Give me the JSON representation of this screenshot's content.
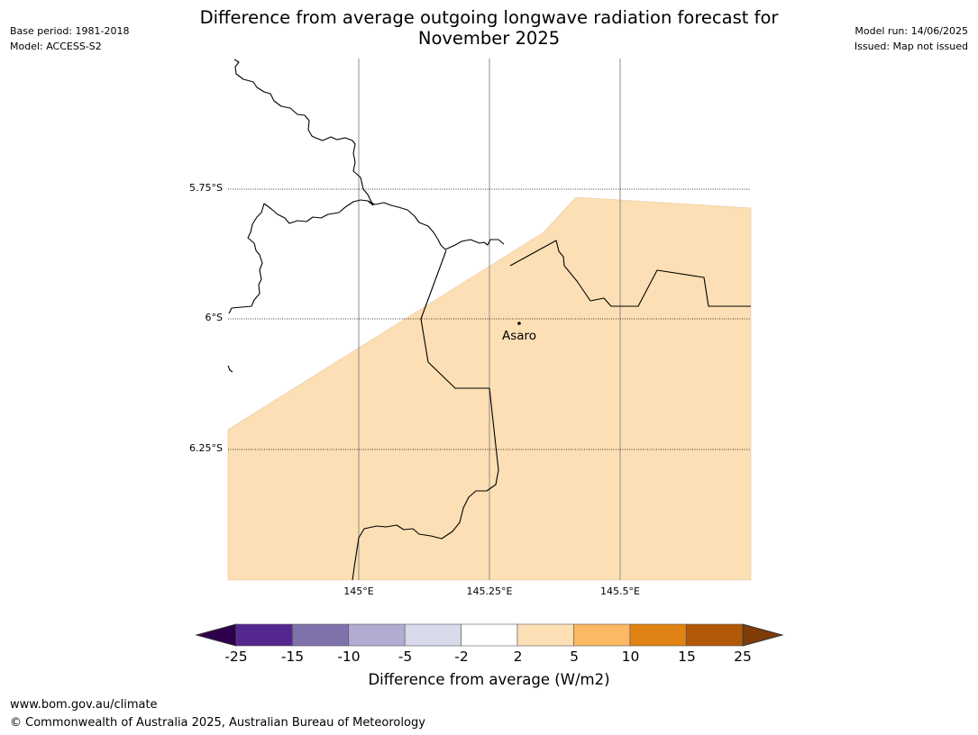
{
  "header": {
    "title_line1": "Difference from average outgoing longwave radiation forecast for",
    "title_line2": "November 2025",
    "base_period": "Base period: 1981-2018",
    "model": "Model: ACCESS-S2",
    "model_run": "Model run: 14/06/2025",
    "issued": "Issued: Map not issued"
  },
  "map": {
    "lat_labels": [
      "5.75°S",
      "6°S",
      "6.25°S"
    ],
    "lon_labels": [
      "145°E",
      "145.25°E",
      "145.5°E"
    ],
    "place_label": "Asaro",
    "fill_color": "#fcdfb4",
    "fill_category": "2 to 5"
  },
  "colorbar": {
    "title": "Difference from average (W/m2)",
    "ticks": [
      "-25",
      "-15",
      "-10",
      "-5",
      "-2",
      "2",
      "5",
      "10",
      "15",
      "25"
    ],
    "colors": [
      "#54278f",
      "#8073ac",
      "#b2abd2",
      "#d8daeb",
      "#ffffff",
      "#fee0b6",
      "#fdb863",
      "#e08214",
      "#b35806"
    ],
    "under_color": "#2d004b",
    "over_color": "#7f3b08"
  },
  "footer": {
    "url": "www.bom.gov.au/climate",
    "copyright": "© Commonwealth of Australia 2025, Australian Bureau of Meteorology"
  }
}
